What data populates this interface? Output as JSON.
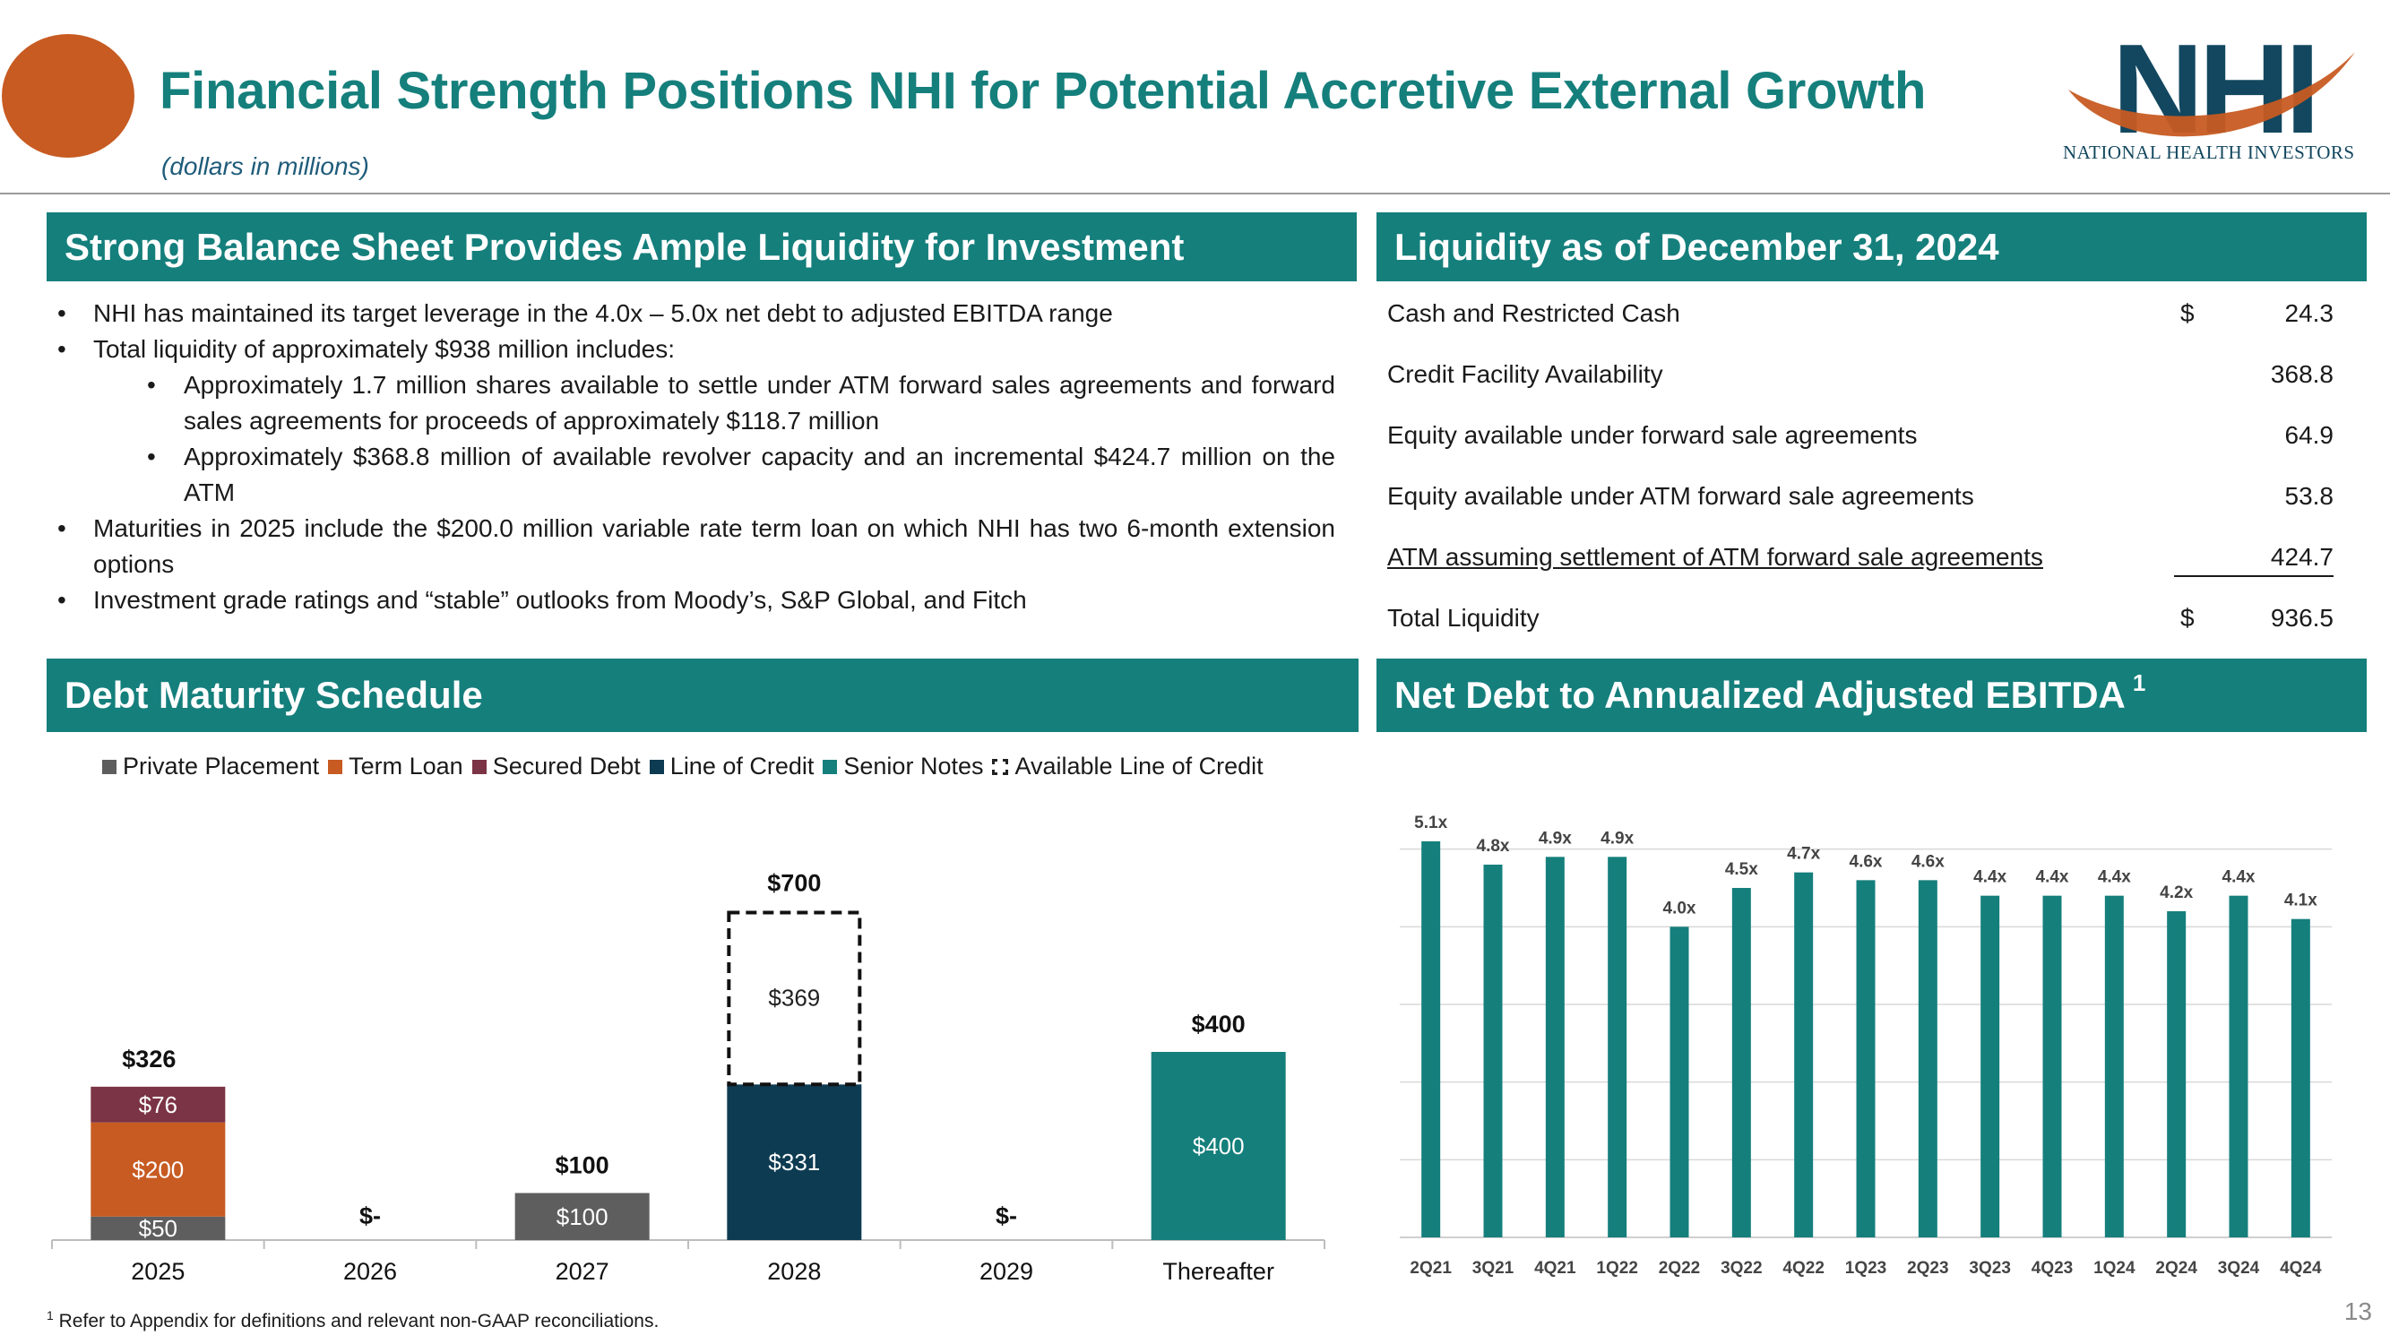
{
  "header": {
    "title": "Financial Strength Positions NHI for Potential Accretive External Growth",
    "subtitle": "(dollars in millions)",
    "logo_text": "NHI",
    "logo_caption": "NATIONAL HEALTH INVESTORS",
    "colors": {
      "accent_teal": "#157f7c",
      "orange": "#c75b22",
      "navy": "#12475f"
    }
  },
  "balance_sheet": {
    "heading": "Strong Balance Sheet Provides Ample Liquidity for Investment",
    "bullets": [
      "NHI has maintained its target leverage in the 4.0x – 5.0x net debt to adjusted EBITDA range",
      "Total liquidity of approximately $938 million includes:",
      "Approximately 1.7 million shares available to settle under ATM forward sales agreements and forward sales agreements for proceeds of approximately $118.7 million",
      "Approximately $368.8 million of available revolver capacity and an incremental $424.7 million on the ATM",
      "Maturities in 2025 include the $200.0 million variable rate term loan on which NHI has two 6-month extension options",
      "Investment grade ratings and “stable” outlooks from Moody’s, S&P Global, and Fitch"
    ]
  },
  "liquidity": {
    "heading": "Liquidity as of December 31, 2024",
    "rows": [
      {
        "label": "Cash and Restricted Cash",
        "currency": "$",
        "value": "24.3"
      },
      {
        "label": "Credit Facility Availability",
        "currency": "",
        "value": "368.8"
      },
      {
        "label": "Equity available under forward sale agreements",
        "currency": "",
        "value": "64.9"
      },
      {
        "label": "Equity available under ATM forward sale agreements",
        "currency": "",
        "value": "53.8"
      },
      {
        "label": "ATM assuming settlement of ATM forward sale agreements",
        "currency": "",
        "value": "424.7"
      },
      {
        "label": "Total Liquidity",
        "currency": "$",
        "value": "936.5"
      }
    ]
  },
  "debt_heading": "Debt Maturity Schedule",
  "ebitda_heading": "Net Debt to Annualized Adjusted EBITDA",
  "ebitda_footnote_mark": "1",
  "footnote": {
    "mark": "1",
    "text": "Refer to Appendix for definitions and relevant non-GAAP reconciliations."
  },
  "page_number": "13",
  "chart_data": [
    {
      "type": "bar",
      "stacked": true,
      "categories": [
        "2025",
        "2026",
        "2027",
        "2028",
        "2029",
        "Thereafter"
      ],
      "series": [
        {
          "name": "Private Placement",
          "color": "#5e5e5e",
          "values": [
            50,
            0,
            100,
            0,
            0,
            0
          ],
          "labels": [
            "$50",
            "",
            "$100",
            "",
            "",
            ""
          ]
        },
        {
          "name": "Term Loan",
          "color": "#c75b22",
          "values": [
            200,
            0,
            0,
            0,
            0,
            0
          ],
          "labels": [
            "$200",
            "",
            "",
            "",
            "",
            ""
          ]
        },
        {
          "name": "Secured Debt",
          "color": "#7b3445",
          "values": [
            76,
            0,
            0,
            0,
            0,
            0
          ],
          "labels": [
            "$76",
            "",
            "",
            "",
            "",
            ""
          ]
        },
        {
          "name": "Line of Credit",
          "color": "#0d3b52",
          "values": [
            0,
            0,
            0,
            331,
            0,
            0
          ],
          "labels": [
            "",
            "",
            "",
            "$331",
            "",
            ""
          ]
        },
        {
          "name": "Senior Notes",
          "color": "#157f7c",
          "values": [
            0,
            0,
            0,
            0,
            0,
            400
          ],
          "labels": [
            "",
            "",
            "",
            "",
            "",
            "$400"
          ]
        },
        {
          "name": "Available Line of Credit",
          "color": "#ffffff",
          "dashed": true,
          "values": [
            0,
            0,
            0,
            369,
            0,
            0
          ],
          "labels": [
            "",
            "",
            "",
            "$369",
            "",
            ""
          ]
        }
      ],
      "totals": [
        "$326",
        "$-",
        "$100",
        "$700",
        "$-",
        "$400"
      ],
      "ylim": [
        0,
        800
      ],
      "legend": "top"
    },
    {
      "type": "bar",
      "categories": [
        "2Q21",
        "3Q21",
        "4Q21",
        "1Q22",
        "2Q22",
        "3Q22",
        "4Q22",
        "1Q23",
        "2Q23",
        "3Q23",
        "4Q23",
        "1Q24",
        "2Q24",
        "3Q24",
        "4Q24"
      ],
      "values": [
        5.1,
        4.8,
        4.9,
        4.9,
        4.0,
        4.5,
        4.7,
        4.6,
        4.6,
        4.4,
        4.4,
        4.4,
        4.2,
        4.4,
        4.1
      ],
      "value_labels": [
        "5.1x",
        "4.8x",
        "4.9x",
        "4.9x",
        "4.0x",
        "4.5x",
        "4.7x",
        "4.6x",
        "4.6x",
        "4.4x",
        "4.4x",
        "4.4x",
        "4.2x",
        "4.4x",
        "4.1x"
      ],
      "color": "#157f7c",
      "ylim": [
        0,
        5.1
      ],
      "grid": true
    }
  ]
}
